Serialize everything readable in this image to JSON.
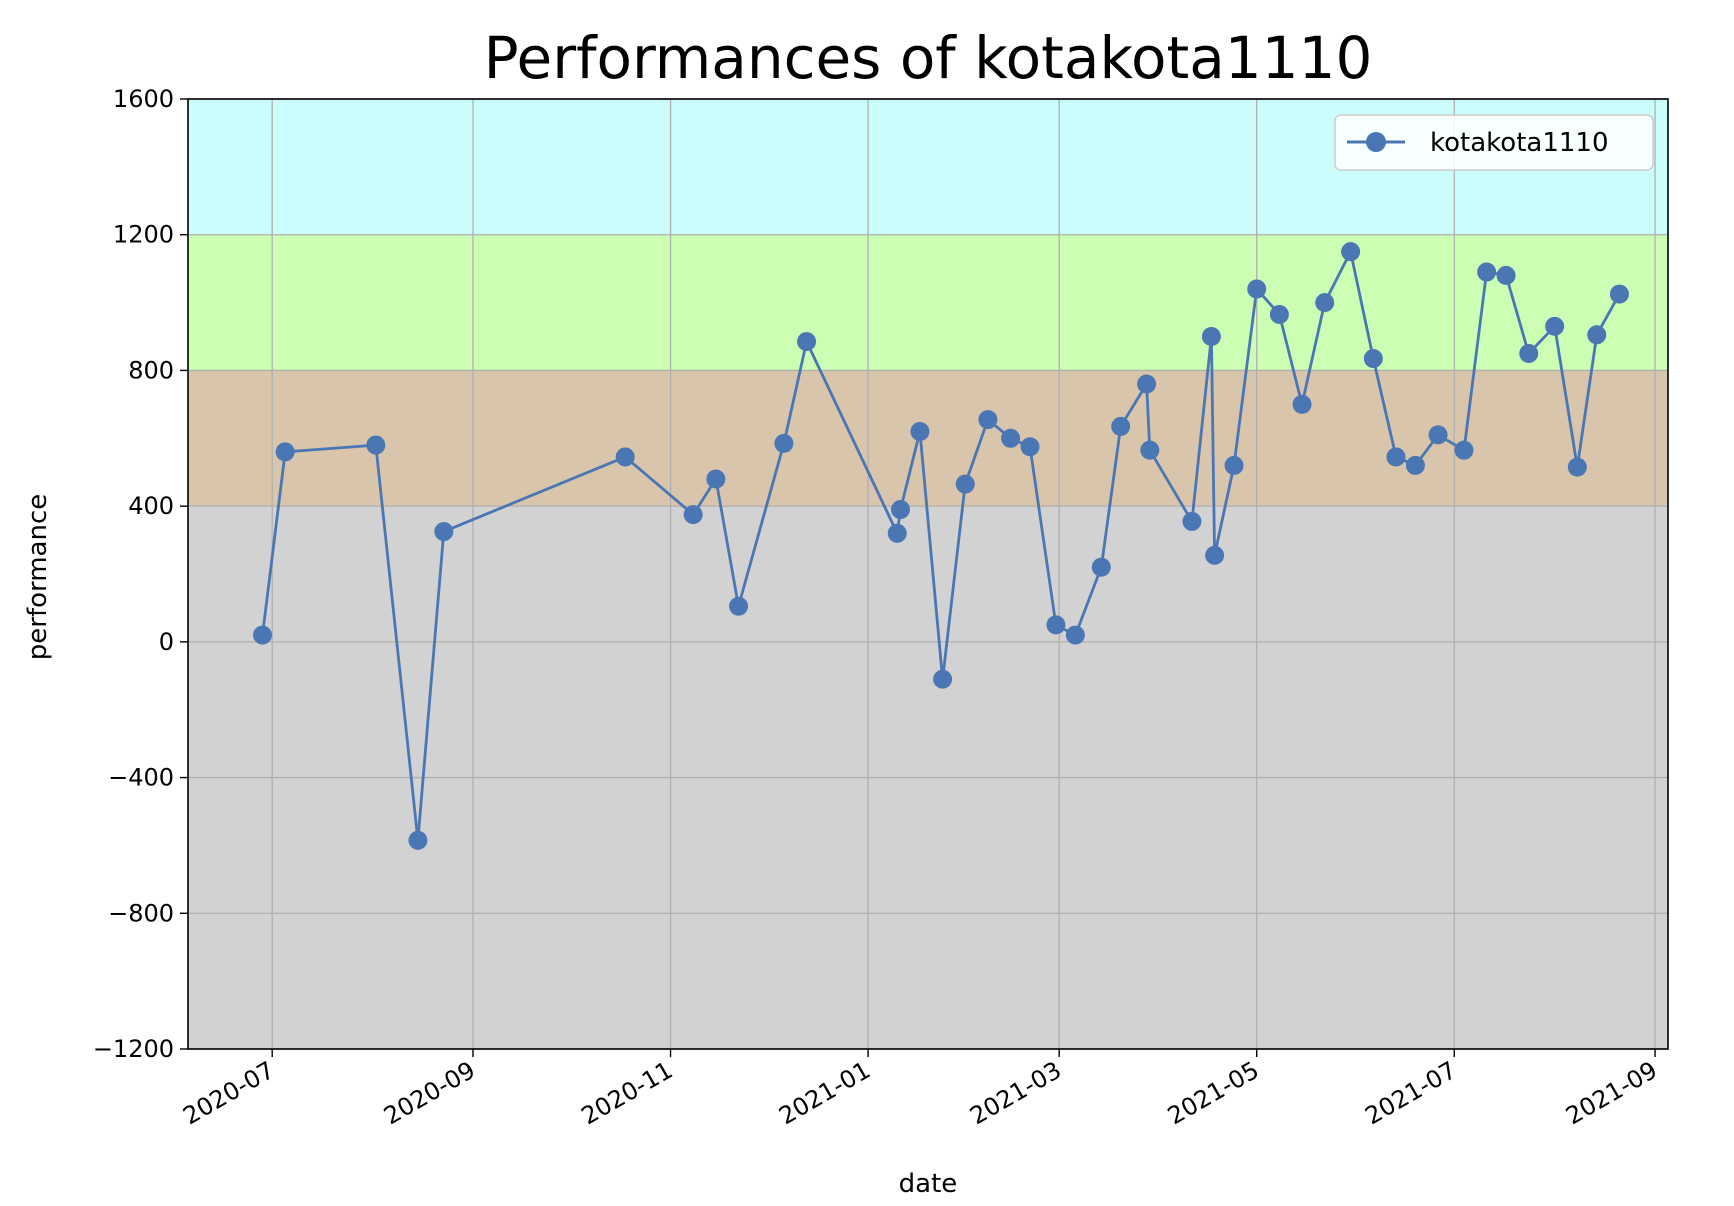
{
  "chart_data": {
    "type": "line",
    "title": "Performances of kotakota1110",
    "xlabel": "date",
    "ylabel": "performance",
    "ylim": [
      -1200,
      1600
    ],
    "xlim": [
      "2020-06-05",
      "2021-09-05"
    ],
    "yticks": [
      "−1200",
      "−800",
      "−400",
      "0",
      "400",
      "800",
      "1200",
      "1600"
    ],
    "ytick_values": [
      -1200,
      -800,
      -400,
      0,
      400,
      800,
      1200,
      1600
    ],
    "xticks": [
      "2020-07",
      "2020-09",
      "2020-11",
      "2021-01",
      "2021-03",
      "2021-05",
      "2021-07",
      "2021-09"
    ],
    "xtick_dates": [
      "2020-07-01",
      "2020-09-01",
      "2020-11-01",
      "2021-01-01",
      "2021-03-01",
      "2021-05-01",
      "2021-07-01",
      "2021-09-01"
    ],
    "grid": true,
    "legend_position": "top-right",
    "bands": [
      {
        "from": -1200,
        "to": 400,
        "color": "#d2d2d2"
      },
      {
        "from": 400,
        "to": 800,
        "color": "#d8c5ab"
      },
      {
        "from": 800,
        "to": 1200,
        "color": "#ccffb3"
      },
      {
        "from": 1200,
        "to": 1600,
        "color": "#ccfdfd"
      }
    ],
    "series": [
      {
        "name": "kotakota1110",
        "color": "#4a77b4",
        "points": [
          {
            "x": "2020-06-28",
            "y": 20
          },
          {
            "x": "2020-07-05",
            "y": 560
          },
          {
            "x": "2020-08-02",
            "y": 580
          },
          {
            "x": "2020-08-15",
            "y": -585
          },
          {
            "x": "2020-08-23",
            "y": 325
          },
          {
            "x": "2020-10-18",
            "y": 545
          },
          {
            "x": "2020-11-08",
            "y": 375
          },
          {
            "x": "2020-11-15",
            "y": 480
          },
          {
            "x": "2020-11-22",
            "y": 105
          },
          {
            "x": "2020-12-06",
            "y": 585
          },
          {
            "x": "2020-12-13",
            "y": 885
          },
          {
            "x": "2021-01-10",
            "y": 320
          },
          {
            "x": "2021-01-11",
            "y": 390
          },
          {
            "x": "2021-01-17",
            "y": 620
          },
          {
            "x": "2021-01-24",
            "y": -110
          },
          {
            "x": "2021-01-31",
            "y": 465
          },
          {
            "x": "2021-02-07",
            "y": 655
          },
          {
            "x": "2021-02-14",
            "y": 600
          },
          {
            "x": "2021-02-20",
            "y": 575
          },
          {
            "x": "2021-02-28",
            "y": 50
          },
          {
            "x": "2021-03-06",
            "y": 20
          },
          {
            "x": "2021-03-14",
            "y": 220
          },
          {
            "x": "2021-03-20",
            "y": 635
          },
          {
            "x": "2021-03-28",
            "y": 760
          },
          {
            "x": "2021-03-29",
            "y": 565
          },
          {
            "x": "2021-04-11",
            "y": 355
          },
          {
            "x": "2021-04-17",
            "y": 900
          },
          {
            "x": "2021-04-18",
            "y": 255
          },
          {
            "x": "2021-04-24",
            "y": 520
          },
          {
            "x": "2021-05-01",
            "y": 1040
          },
          {
            "x": "2021-05-08",
            "y": 965
          },
          {
            "x": "2021-05-15",
            "y": 700
          },
          {
            "x": "2021-05-22",
            "y": 1000
          },
          {
            "x": "2021-05-30",
            "y": 1150
          },
          {
            "x": "2021-06-06",
            "y": 835
          },
          {
            "x": "2021-06-13",
            "y": 545
          },
          {
            "x": "2021-06-19",
            "y": 520
          },
          {
            "x": "2021-06-26",
            "y": 610
          },
          {
            "x": "2021-07-04",
            "y": 565
          },
          {
            "x": "2021-07-11",
            "y": 1090
          },
          {
            "x": "2021-07-17",
            "y": 1080
          },
          {
            "x": "2021-07-24",
            "y": 850
          },
          {
            "x": "2021-08-01",
            "y": 930
          },
          {
            "x": "2021-08-08",
            "y": 515
          },
          {
            "x": "2021-08-14",
            "y": 905
          },
          {
            "x": "2021-08-21",
            "y": 1025
          }
        ]
      }
    ]
  }
}
